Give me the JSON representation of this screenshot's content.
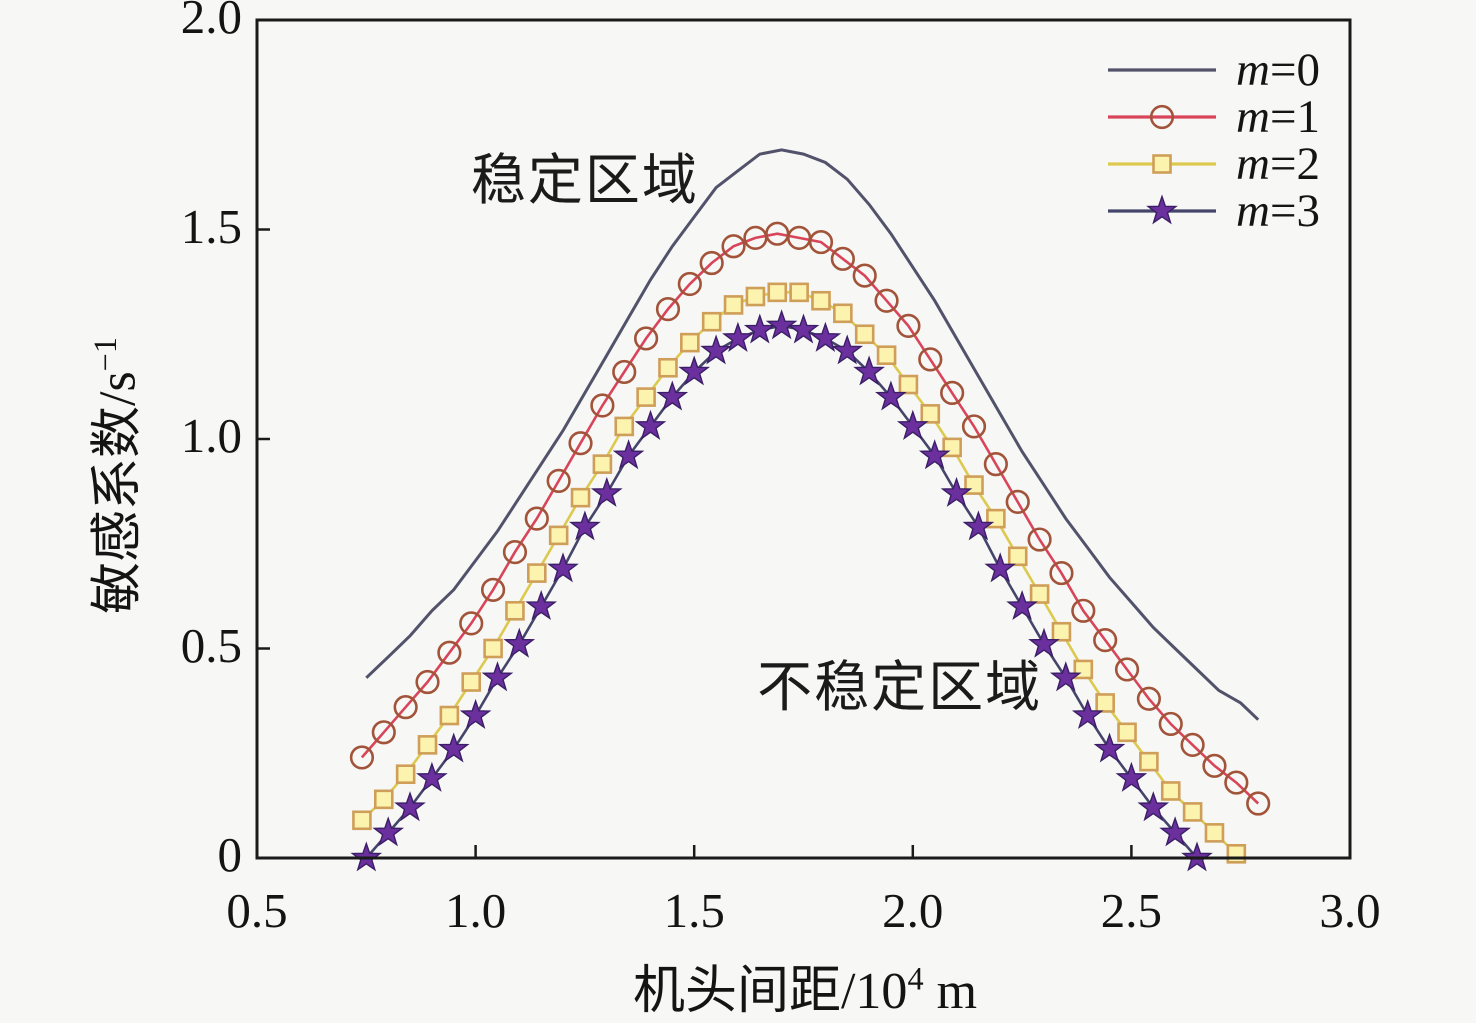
{
  "figure": {
    "background": "#f7f7f5",
    "axis_color": "#1a1a1a"
  },
  "chart_data": {
    "type": "line",
    "title": "",
    "xlabel": {
      "prefix": "机头间距/10",
      "sup": "4",
      "suffix": " m"
    },
    "ylabel": {
      "prefix": "敏感系数/s",
      "sup": "−1",
      "suffix": ""
    },
    "xlim": [
      0.5,
      3.0
    ],
    "ylim": [
      0,
      2.0
    ],
    "grid": false,
    "legend_position": "top-right-inside",
    "x_ticks": {
      "labeled": [
        {
          "v": 0.5,
          "label": "0.5"
        },
        {
          "v": 1.0,
          "label": "1.0"
        },
        {
          "v": 1.5,
          "label": "1.5"
        },
        {
          "v": 2.0,
          "label": "2.0"
        },
        {
          "v": 2.5,
          "label": "2.5"
        },
        {
          "v": 3.0,
          "label": "3.0"
        }
      ],
      "marks": [
        1.0,
        1.5,
        2.0,
        2.5
      ]
    },
    "y_ticks": {
      "labeled": [
        {
          "v": 0,
          "label": "0"
        },
        {
          "v": 0.5,
          "label": "0.5"
        },
        {
          "v": 1.0,
          "label": "1.0"
        },
        {
          "v": 1.5,
          "label": "1.5"
        },
        {
          "v": 2.0,
          "label": "2.0"
        }
      ],
      "marks": [
        0.5,
        1.0,
        1.5
      ]
    },
    "annotations": [
      {
        "text": "稳定区域",
        "x": 1.25,
        "y": 1.63
      },
      {
        "text": "不稳定区域",
        "x": 1.97,
        "y": 0.42
      }
    ],
    "series": [
      {
        "label_var": "m",
        "label_eq": "=0",
        "line_color": "#52526b",
        "line_width": 3,
        "marker": "none",
        "marker_color": "",
        "marker_fill": "",
        "points": [
          [
            0.75,
            0.43
          ],
          [
            0.8,
            0.48
          ],
          [
            0.85,
            0.53
          ],
          [
            0.9,
            0.59
          ],
          [
            0.95,
            0.64
          ],
          [
            1.0,
            0.71
          ],
          [
            1.05,
            0.78
          ],
          [
            1.1,
            0.86
          ],
          [
            1.15,
            0.94
          ],
          [
            1.2,
            1.02
          ],
          [
            1.25,
            1.11
          ],
          [
            1.3,
            1.2
          ],
          [
            1.35,
            1.29
          ],
          [
            1.4,
            1.38
          ],
          [
            1.45,
            1.46
          ],
          [
            1.5,
            1.53
          ],
          [
            1.55,
            1.6
          ],
          [
            1.6,
            1.64
          ],
          [
            1.65,
            1.68
          ],
          [
            1.7,
            1.69
          ],
          [
            1.75,
            1.68
          ],
          [
            1.8,
            1.66
          ],
          [
            1.85,
            1.62
          ],
          [
            1.9,
            1.56
          ],
          [
            1.95,
            1.49
          ],
          [
            2.0,
            1.41
          ],
          [
            2.05,
            1.33
          ],
          [
            2.1,
            1.24
          ],
          [
            2.15,
            1.15
          ],
          [
            2.2,
            1.06
          ],
          [
            2.25,
            0.97
          ],
          [
            2.3,
            0.89
          ],
          [
            2.35,
            0.81
          ],
          [
            2.4,
            0.74
          ],
          [
            2.45,
            0.67
          ],
          [
            2.5,
            0.61
          ],
          [
            2.55,
            0.55
          ],
          [
            2.6,
            0.5
          ],
          [
            2.65,
            0.45
          ],
          [
            2.7,
            0.4
          ],
          [
            2.75,
            0.37
          ],
          [
            2.79,
            0.33
          ]
        ]
      },
      {
        "label_var": "m",
        "label_eq": "=1",
        "line_color": "#d8455a",
        "line_width": 2.6,
        "marker": "circle",
        "marker_color": "#a2543a",
        "marker_fill": "none",
        "points": [
          [
            0.74,
            0.24
          ],
          [
            0.79,
            0.3
          ],
          [
            0.84,
            0.36
          ],
          [
            0.89,
            0.42
          ],
          [
            0.94,
            0.49
          ],
          [
            0.99,
            0.56
          ],
          [
            1.04,
            0.64
          ],
          [
            1.09,
            0.73
          ],
          [
            1.14,
            0.81
          ],
          [
            1.19,
            0.9
          ],
          [
            1.24,
            0.99
          ],
          [
            1.29,
            1.08
          ],
          [
            1.34,
            1.16
          ],
          [
            1.39,
            1.24
          ],
          [
            1.44,
            1.31
          ],
          [
            1.49,
            1.37
          ],
          [
            1.54,
            1.42
          ],
          [
            1.59,
            1.46
          ],
          [
            1.64,
            1.48
          ],
          [
            1.69,
            1.49
          ],
          [
            1.74,
            1.48
          ],
          [
            1.79,
            1.47
          ],
          [
            1.84,
            1.43
          ],
          [
            1.89,
            1.39
          ],
          [
            1.94,
            1.33
          ],
          [
            1.99,
            1.27
          ],
          [
            2.04,
            1.19
          ],
          [
            2.09,
            1.11
          ],
          [
            2.14,
            1.03
          ],
          [
            2.19,
            0.94
          ],
          [
            2.24,
            0.85
          ],
          [
            2.29,
            0.76
          ],
          [
            2.34,
            0.68
          ],
          [
            2.39,
            0.59
          ],
          [
            2.44,
            0.52
          ],
          [
            2.49,
            0.45
          ],
          [
            2.54,
            0.38
          ],
          [
            2.59,
            0.32
          ],
          [
            2.64,
            0.27
          ],
          [
            2.69,
            0.22
          ],
          [
            2.74,
            0.18
          ],
          [
            2.79,
            0.13
          ]
        ]
      },
      {
        "label_var": "m",
        "label_eq": "=2",
        "line_color": "#ddc94e",
        "line_width": 2.6,
        "marker": "square",
        "marker_color": "#cf9e58",
        "marker_fill": "#fcf3ae",
        "points": [
          [
            0.74,
            0.09
          ],
          [
            0.79,
            0.14
          ],
          [
            0.84,
            0.2
          ],
          [
            0.89,
            0.27
          ],
          [
            0.94,
            0.34
          ],
          [
            0.99,
            0.42
          ],
          [
            1.04,
            0.5
          ],
          [
            1.09,
            0.59
          ],
          [
            1.14,
            0.68
          ],
          [
            1.19,
            0.77
          ],
          [
            1.24,
            0.86
          ],
          [
            1.29,
            0.94
          ],
          [
            1.34,
            1.03
          ],
          [
            1.39,
            1.1
          ],
          [
            1.44,
            1.17
          ],
          [
            1.49,
            1.23
          ],
          [
            1.54,
            1.28
          ],
          [
            1.59,
            1.32
          ],
          [
            1.64,
            1.34
          ],
          [
            1.69,
            1.35
          ],
          [
            1.74,
            1.35
          ],
          [
            1.79,
            1.33
          ],
          [
            1.84,
            1.3
          ],
          [
            1.89,
            1.25
          ],
          [
            1.94,
            1.2
          ],
          [
            1.99,
            1.13
          ],
          [
            2.04,
            1.06
          ],
          [
            2.09,
            0.98
          ],
          [
            2.14,
            0.89
          ],
          [
            2.19,
            0.81
          ],
          [
            2.24,
            0.72
          ],
          [
            2.29,
            0.63
          ],
          [
            2.34,
            0.54
          ],
          [
            2.39,
            0.45
          ],
          [
            2.44,
            0.37
          ],
          [
            2.49,
            0.3
          ],
          [
            2.54,
            0.23
          ],
          [
            2.59,
            0.16
          ],
          [
            2.64,
            0.11
          ],
          [
            2.69,
            0.06
          ],
          [
            2.74,
            0.01
          ]
        ]
      },
      {
        "label_var": "m",
        "label_eq": "=3",
        "line_color": "#45456b",
        "line_width": 2.6,
        "marker": "star",
        "marker_color": "#3a1f66",
        "marker_fill": "#6b2f9e",
        "points": [
          [
            0.75,
            0.0
          ],
          [
            0.8,
            0.06
          ],
          [
            0.85,
            0.12
          ],
          [
            0.9,
            0.19
          ],
          [
            0.95,
            0.26
          ],
          [
            1.0,
            0.34
          ],
          [
            1.05,
            0.43
          ],
          [
            1.1,
            0.51
          ],
          [
            1.15,
            0.6
          ],
          [
            1.2,
            0.69
          ],
          [
            1.25,
            0.79
          ],
          [
            1.3,
            0.87
          ],
          [
            1.35,
            0.96
          ],
          [
            1.4,
            1.03
          ],
          [
            1.45,
            1.1
          ],
          [
            1.5,
            1.16
          ],
          [
            1.55,
            1.21
          ],
          [
            1.6,
            1.24
          ],
          [
            1.65,
            1.26
          ],
          [
            1.7,
            1.27
          ],
          [
            1.75,
            1.26
          ],
          [
            1.8,
            1.24
          ],
          [
            1.85,
            1.21
          ],
          [
            1.9,
            1.16
          ],
          [
            1.95,
            1.1
          ],
          [
            2.0,
            1.03
          ],
          [
            2.05,
            0.96
          ],
          [
            2.1,
            0.87
          ],
          [
            2.15,
            0.79
          ],
          [
            2.2,
            0.69
          ],
          [
            2.25,
            0.6
          ],
          [
            2.3,
            0.51
          ],
          [
            2.35,
            0.43
          ],
          [
            2.4,
            0.34
          ],
          [
            2.45,
            0.26
          ],
          [
            2.5,
            0.19
          ],
          [
            2.55,
            0.12
          ],
          [
            2.6,
            0.06
          ],
          [
            2.65,
            0.0
          ]
        ]
      }
    ]
  }
}
